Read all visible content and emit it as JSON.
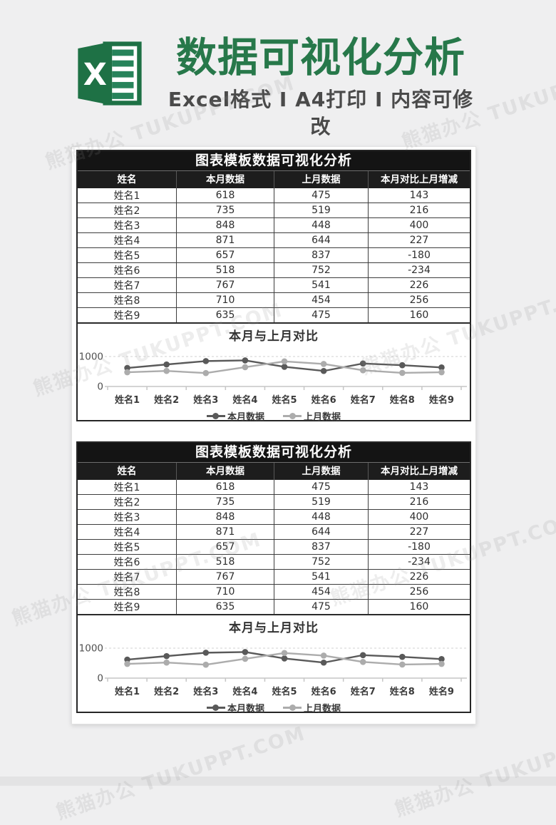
{
  "header": {
    "logo_letter": "X",
    "title": "数据可视化分析",
    "title_color": "#27784a",
    "logo_color": "#1e7145",
    "subtitle": "Excel格式 Ⅰ A4打印 Ⅰ 内容可修改"
  },
  "watermark": {
    "text": "熊猫办公 TUKUPPT.COM"
  },
  "sections": [
    {
      "table_title": "图表模板数据可视化分析",
      "columns": [
        "姓名",
        "本月数据",
        "上月数据",
        "本月对比上月增减"
      ],
      "rows": [
        [
          "姓名1",
          "618",
          "475",
          "143"
        ],
        [
          "姓名2",
          "735",
          "519",
          "216"
        ],
        [
          "姓名3",
          "848",
          "448",
          "400"
        ],
        [
          "姓名4",
          "871",
          "644",
          "227"
        ],
        [
          "姓名5",
          "657",
          "837",
          "-180"
        ],
        [
          "姓名6",
          "518",
          "752",
          "-234"
        ],
        [
          "姓名7",
          "767",
          "541",
          "226"
        ],
        [
          "姓名8",
          "710",
          "454",
          "256"
        ],
        [
          "姓名9",
          "635",
          "475",
          "160"
        ]
      ]
    },
    {
      "table_title": "图表模板数据可视化分析",
      "columns": [
        "姓名",
        "本月数据",
        "上月数据",
        "本月对比上月增减"
      ],
      "rows": [
        [
          "姓名1",
          "618",
          "475",
          "143"
        ],
        [
          "姓名2",
          "735",
          "519",
          "216"
        ],
        [
          "姓名3",
          "848",
          "448",
          "400"
        ],
        [
          "姓名4",
          "871",
          "644",
          "227"
        ],
        [
          "姓名5",
          "657",
          "837",
          "-180"
        ],
        [
          "姓名6",
          "518",
          "752",
          "-234"
        ],
        [
          "姓名7",
          "767",
          "541",
          "226"
        ],
        [
          "姓名8",
          "710",
          "454",
          "256"
        ],
        [
          "姓名9",
          "635",
          "475",
          "160"
        ]
      ]
    }
  ],
  "chart_data": [
    {
      "type": "line",
      "title": "本月与上月对比",
      "categories": [
        "姓名1",
        "姓名2",
        "姓名3",
        "姓名4",
        "姓名5",
        "姓名6",
        "姓名7",
        "姓名8",
        "姓名9"
      ],
      "series": [
        {
          "name": "本月数据",
          "color": "#595959",
          "values": [
            618,
            735,
            848,
            871,
            657,
            518,
            767,
            710,
            635
          ]
        },
        {
          "name": "上月数据",
          "color": "#acacac",
          "values": [
            475,
            519,
            448,
            644,
            837,
            752,
            541,
            454,
            475
          ]
        }
      ],
      "ylim": [
        0,
        1000
      ],
      "yticks": [
        0,
        1000
      ],
      "grid": "dashed-top-gridline",
      "legend_position": "bottom"
    },
    {
      "type": "line",
      "title": "本月与上月对比",
      "categories": [
        "姓名1",
        "姓名2",
        "姓名3",
        "姓名4",
        "姓名5",
        "姓名6",
        "姓名7",
        "姓名8",
        "姓名9"
      ],
      "series": [
        {
          "name": "本月数据",
          "color": "#595959",
          "values": [
            618,
            735,
            848,
            871,
            657,
            518,
            767,
            710,
            635
          ]
        },
        {
          "name": "上月数据",
          "color": "#acacac",
          "values": [
            475,
            519,
            448,
            644,
            837,
            752,
            541,
            454,
            475
          ]
        }
      ],
      "ylim": [
        0,
        1000
      ],
      "yticks": [
        0,
        1000
      ],
      "grid": "dashed-top-gridline",
      "legend_position": "bottom"
    }
  ]
}
